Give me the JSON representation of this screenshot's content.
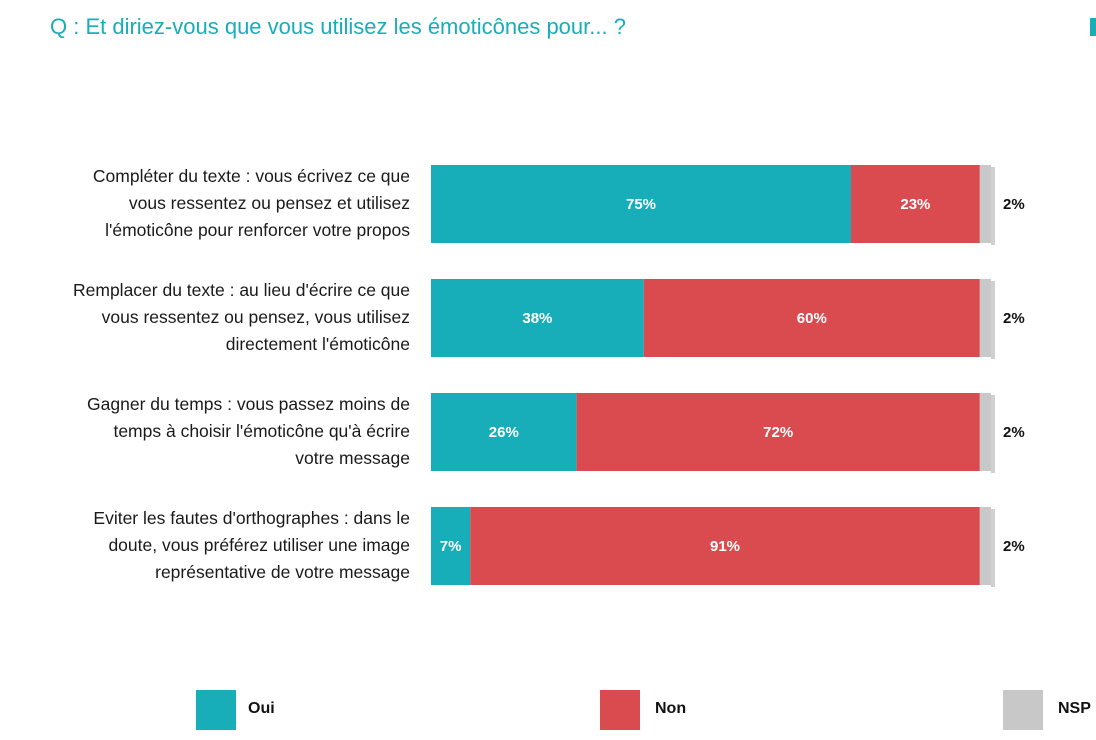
{
  "title": "Q : Et diriez-vous que vous utilisez les émoticônes pour... ?",
  "colors": {
    "oui": "#17AEBA",
    "non": "#D94B4E",
    "nsp": "#C8C8C8",
    "title": "#17AEBA"
  },
  "chart_data": {
    "type": "bar",
    "orientation": "horizontal",
    "stacked": true,
    "value_format": "percent",
    "categories": [
      "Compléter du texte : vous écrivez ce que\nvous ressentez ou pensez et utilisez\nl'émoticône pour renforcer votre propos",
      "Remplacer du texte : au lieu d'écrire ce que\nvous ressentez ou pensez, vous utilisez\ndirectement l'émoticône",
      "Gagner du temps : vous passez moins de\ntemps à choisir l'émoticône qu'à écrire\nvotre message",
      "Eviter les fautes d'orthographes : dans le\ndoute, vous préférez utiliser une image\nreprésentative de votre message"
    ],
    "series": [
      {
        "name": "Oui",
        "color": "#17AEBA",
        "values": [
          75,
          38,
          26,
          7
        ]
      },
      {
        "name": "Non",
        "color": "#D94B4E",
        "values": [
          23,
          60,
          72,
          91
        ]
      },
      {
        "name": "NSP",
        "color": "#C8C8C8",
        "values": [
          2,
          2,
          2,
          2
        ]
      }
    ],
    "xlim": [
      0,
      100
    ],
    "legend_position": "bottom",
    "grid": false
  }
}
